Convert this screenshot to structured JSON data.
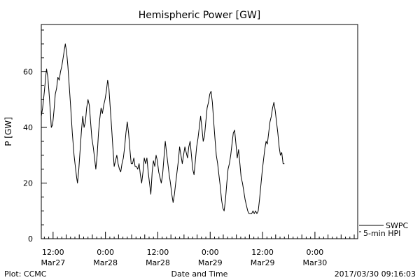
{
  "chart_data": {
    "type": "line",
    "title": "Hemispheric Power [GW]",
    "ylabel": "P [GW]",
    "xlabel": "Date and Time",
    "ylim": [
      0,
      77
    ],
    "x_unit": "hours since 2017-03-27 00:00",
    "xlim": [
      9.3,
      81.8
    ],
    "yticks": [
      0,
      20,
      40,
      60
    ],
    "xticks": [
      {
        "x": 12,
        "time": "12:00",
        "date": "Mar27"
      },
      {
        "x": 24,
        "time": "0:00",
        "date": "Mar28"
      },
      {
        "x": 36,
        "time": "12:00",
        "date": "Mar28"
      },
      {
        "x": 48,
        "time": "0:00",
        "date": "Mar29"
      },
      {
        "x": 60,
        "time": "12:00",
        "date": "Mar29"
      },
      {
        "x": 72,
        "time": "0:00",
        "date": "Mar30"
      }
    ],
    "series": [
      {
        "name": "5-min HPI",
        "color": "#000000",
        "points": [
          [
            9.3,
            44
          ],
          [
            9.6,
            47
          ],
          [
            10.0,
            53
          ],
          [
            10.3,
            58
          ],
          [
            10.5,
            61
          ],
          [
            10.8,
            58
          ],
          [
            11.1,
            52
          ],
          [
            11.4,
            45
          ],
          [
            11.6,
            40
          ],
          [
            11.9,
            41
          ],
          [
            12.2,
            46
          ],
          [
            12.5,
            52
          ],
          [
            12.8,
            54
          ],
          [
            13.1,
            58
          ],
          [
            13.4,
            57
          ],
          [
            13.7,
            60
          ],
          [
            14.0,
            62
          ],
          [
            14.3,
            65
          ],
          [
            14.6,
            68
          ],
          [
            14.8,
            70
          ],
          [
            15.1,
            67
          ],
          [
            15.4,
            62
          ],
          [
            15.7,
            55
          ],
          [
            16.0,
            48
          ],
          [
            16.4,
            38
          ],
          [
            16.8,
            30
          ],
          [
            17.1,
            26
          ],
          [
            17.4,
            22
          ],
          [
            17.6,
            20
          ],
          [
            17.9,
            25
          ],
          [
            18.2,
            32
          ],
          [
            18.5,
            39
          ],
          [
            18.8,
            44
          ],
          [
            19.1,
            40
          ],
          [
            19.4,
            42
          ],
          [
            19.7,
            47
          ],
          [
            20.0,
            50
          ],
          [
            20.3,
            48
          ],
          [
            20.6,
            42
          ],
          [
            20.9,
            36
          ],
          [
            21.2,
            33
          ],
          [
            21.5,
            29
          ],
          [
            21.8,
            25
          ],
          [
            22.1,
            30
          ],
          [
            22.4,
            38
          ],
          [
            22.7,
            43
          ],
          [
            23.0,
            47
          ],
          [
            23.3,
            45
          ],
          [
            23.6,
            48
          ],
          [
            23.9,
            50
          ],
          [
            24.2,
            53
          ],
          [
            24.5,
            57
          ],
          [
            24.8,
            54
          ],
          [
            25.1,
            47
          ],
          [
            25.4,
            40
          ],
          [
            25.7,
            33
          ],
          [
            26.0,
            26
          ],
          [
            26.3,
            28
          ],
          [
            26.6,
            30
          ],
          [
            26.9,
            27
          ],
          [
            27.2,
            25
          ],
          [
            27.5,
            24
          ],
          [
            27.8,
            27
          ],
          [
            28.1,
            29
          ],
          [
            28.4,
            33
          ],
          [
            28.7,
            38
          ],
          [
            29.0,
            42
          ],
          [
            29.3,
            38
          ],
          [
            29.6,
            32
          ],
          [
            29.9,
            27
          ],
          [
            30.2,
            27
          ],
          [
            30.5,
            29
          ],
          [
            30.8,
            26
          ],
          [
            31.1,
            26
          ],
          [
            31.4,
            25
          ],
          [
            31.7,
            27
          ],
          [
            32.0,
            23
          ],
          [
            32.3,
            20
          ],
          [
            32.6,
            24
          ],
          [
            32.9,
            29
          ],
          [
            33.2,
            27
          ],
          [
            33.5,
            29
          ],
          [
            33.8,
            24
          ],
          [
            34.1,
            20
          ],
          [
            34.4,
            16
          ],
          [
            34.7,
            24
          ],
          [
            35.0,
            28
          ],
          [
            35.3,
            26
          ],
          [
            35.6,
            30
          ],
          [
            35.9,
            28
          ],
          [
            36.2,
            24
          ],
          [
            36.5,
            22
          ],
          [
            36.8,
            20
          ],
          [
            37.1,
            23
          ],
          [
            37.4,
            29
          ],
          [
            37.7,
            35
          ],
          [
            38.0,
            31
          ],
          [
            38.3,
            27
          ],
          [
            38.6,
            23
          ],
          [
            38.9,
            20
          ],
          [
            39.2,
            16
          ],
          [
            39.5,
            13
          ],
          [
            39.8,
            16
          ],
          [
            40.1,
            20
          ],
          [
            40.4,
            24
          ],
          [
            40.7,
            28
          ],
          [
            41.0,
            33
          ],
          [
            41.3,
            30
          ],
          [
            41.6,
            27
          ],
          [
            41.9,
            30
          ],
          [
            42.2,
            33
          ],
          [
            42.5,
            31
          ],
          [
            42.8,
            29
          ],
          [
            43.1,
            33
          ],
          [
            43.4,
            35
          ],
          [
            43.7,
            30
          ],
          [
            44.0,
            25
          ],
          [
            44.3,
            23
          ],
          [
            44.6,
            28
          ],
          [
            44.9,
            33
          ],
          [
            45.2,
            36
          ],
          [
            45.5,
            40
          ],
          [
            45.8,
            44
          ],
          [
            46.1,
            40
          ],
          [
            46.4,
            35
          ],
          [
            46.7,
            37
          ],
          [
            47.0,
            42
          ],
          [
            47.3,
            47
          ],
          [
            47.6,
            49
          ],
          [
            47.9,
            52
          ],
          [
            48.2,
            53
          ],
          [
            48.5,
            49
          ],
          [
            48.8,
            42
          ],
          [
            49.1,
            36
          ],
          [
            49.4,
            30
          ],
          [
            49.7,
            27
          ],
          [
            50.0,
            23
          ],
          [
            50.3,
            19
          ],
          [
            50.6,
            14
          ],
          [
            50.9,
            11
          ],
          [
            51.2,
            10
          ],
          [
            51.5,
            14
          ],
          [
            51.8,
            20
          ],
          [
            52.1,
            25
          ],
          [
            52.4,
            27
          ],
          [
            52.7,
            30
          ],
          [
            53.0,
            34
          ],
          [
            53.3,
            38
          ],
          [
            53.6,
            39
          ],
          [
            53.9,
            34
          ],
          [
            54.2,
            29
          ],
          [
            54.5,
            32
          ],
          [
            54.8,
            27
          ],
          [
            55.1,
            22
          ],
          [
            55.4,
            20
          ],
          [
            55.7,
            17
          ],
          [
            56.0,
            14
          ],
          [
            56.3,
            12
          ],
          [
            56.6,
            10
          ],
          [
            56.9,
            9
          ],
          [
            57.2,
            9
          ],
          [
            57.5,
            9
          ],
          [
            57.8,
            10
          ],
          [
            58.1,
            9
          ],
          [
            58.4,
            10
          ],
          [
            58.7,
            9
          ],
          [
            59.0,
            10
          ],
          [
            59.3,
            14
          ],
          [
            59.6,
            19
          ],
          [
            59.9,
            24
          ],
          [
            60.2,
            28
          ],
          [
            60.5,
            32
          ],
          [
            60.8,
            35
          ],
          [
            61.1,
            34
          ],
          [
            61.4,
            38
          ],
          [
            61.7,
            42
          ],
          [
            62.0,
            44
          ],
          [
            62.3,
            47
          ],
          [
            62.6,
            49
          ],
          [
            62.9,
            46
          ],
          [
            63.2,
            42
          ],
          [
            63.5,
            38
          ],
          [
            63.8,
            33
          ],
          [
            64.1,
            30
          ],
          [
            64.4,
            31
          ],
          [
            64.7,
            27
          ],
          [
            65.0,
            27
          ]
        ]
      }
    ],
    "swpc_label": "SWPC",
    "credit_left": "Plot: CCMC",
    "credit_right": "2017/03/30 09:16:03"
  }
}
